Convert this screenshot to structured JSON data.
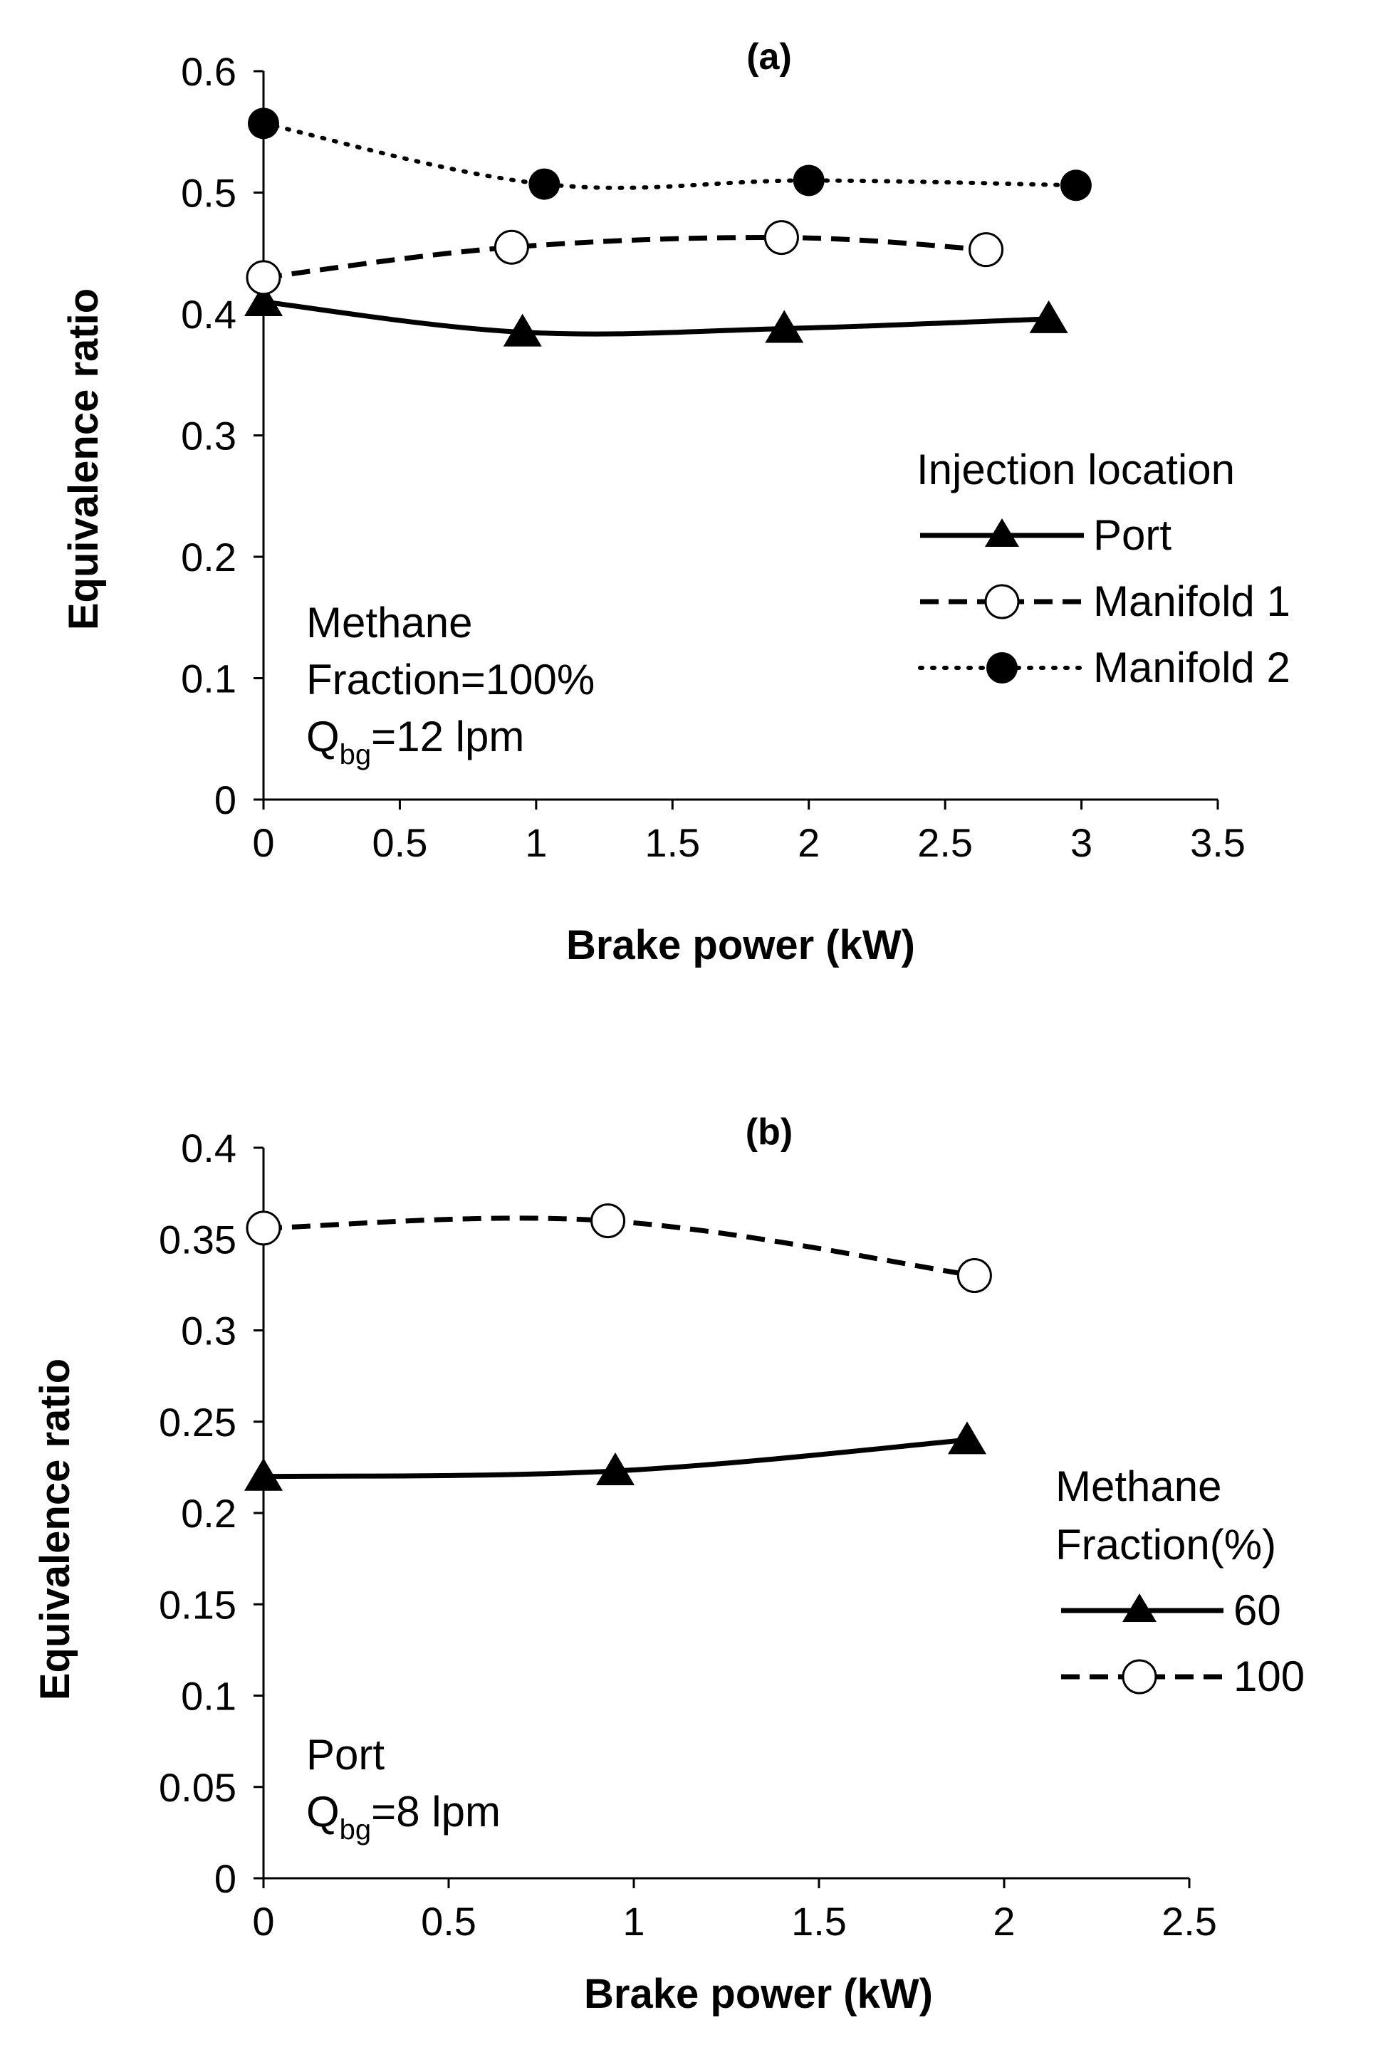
{
  "chart_data": [
    {
      "type": "line",
      "panel_label": "(a)",
      "xlabel": "Brake power (kW)",
      "ylabel": "Equivalence  ratio",
      "xlim": [
        0,
        3.5
      ],
      "ylim": [
        0,
        0.6
      ],
      "xticks": [
        0,
        0.5,
        1,
        1.5,
        2,
        2.5,
        3,
        3.5
      ],
      "yticks": [
        0,
        0.1,
        0.2,
        0.3,
        0.4,
        0.5,
        0.6
      ],
      "xtick_labels": [
        "0",
        "0.5",
        "1",
        "1.5",
        "2",
        "2.5",
        "3",
        "3.5"
      ],
      "ytick_labels": [
        "0",
        "0.1",
        "0.2",
        "0.3",
        "0.4",
        "0.5",
        "0.6"
      ],
      "grid": false,
      "legend_title": "Injection location",
      "legend_position": "right",
      "series": [
        {
          "name": "Port",
          "marker": "triangle",
          "line": "solid",
          "x": [
            0,
            0.95,
            1.91,
            2.88
          ],
          "y": [
            0.41,
            0.385,
            0.388,
            0.396
          ]
        },
        {
          "name": "Manifold 1",
          "marker": "open-circle",
          "line": "dashed",
          "x": [
            0,
            0.91,
            1.9,
            2.65
          ],
          "y": [
            0.43,
            0.455,
            0.463,
            0.453
          ]
        },
        {
          "name": "Manifold 2",
          "marker": "filled-circle",
          "line": "dotted",
          "x": [
            0,
            1.03,
            2.0,
            2.98
          ],
          "y": [
            0.557,
            0.507,
            0.51,
            0.506
          ]
        }
      ],
      "annotation": {
        "line1": "Methane",
        "line2": "Fraction=100%",
        "q_main": "Q",
        "q_sub": "bg",
        "q_rest": "=12 lpm"
      }
    },
    {
      "type": "line",
      "panel_label": "(b)",
      "xlabel": "Brake power (kW)",
      "ylabel": "Equivalence  ratio",
      "xlim": [
        0,
        2.5
      ],
      "ylim": [
        0,
        0.4
      ],
      "xticks": [
        0,
        0.5,
        1,
        1.5,
        2,
        2.5
      ],
      "yticks": [
        0,
        0.05,
        0.1,
        0.15,
        0.2,
        0.25,
        0.3,
        0.35,
        0.4
      ],
      "xtick_labels": [
        "0",
        "0.5",
        "1",
        "1.5",
        "2",
        "2.5"
      ],
      "ytick_labels": [
        "0",
        "0.05",
        "0.1",
        "0.15",
        "0.2",
        "0.25",
        "0.3",
        "0.35",
        "0.4"
      ],
      "grid": false,
      "legend_title_line1": "Methane",
      "legend_title_line2": "Fraction(%)",
      "legend_position": "right",
      "series": [
        {
          "name": "60",
          "marker": "triangle",
          "line": "solid",
          "x": [
            0,
            0.95,
            1.9
          ],
          "y": [
            0.22,
            0.223,
            0.24
          ]
        },
        {
          "name": "100",
          "marker": "open-circle",
          "line": "dashed",
          "x": [
            0,
            0.93,
            1.92
          ],
          "y": [
            0.356,
            0.36,
            0.33
          ]
        }
      ],
      "annotation": {
        "line1": "Port",
        "q_main": "Q",
        "q_sub": "bg",
        "q_rest": "=8 lpm"
      }
    }
  ]
}
